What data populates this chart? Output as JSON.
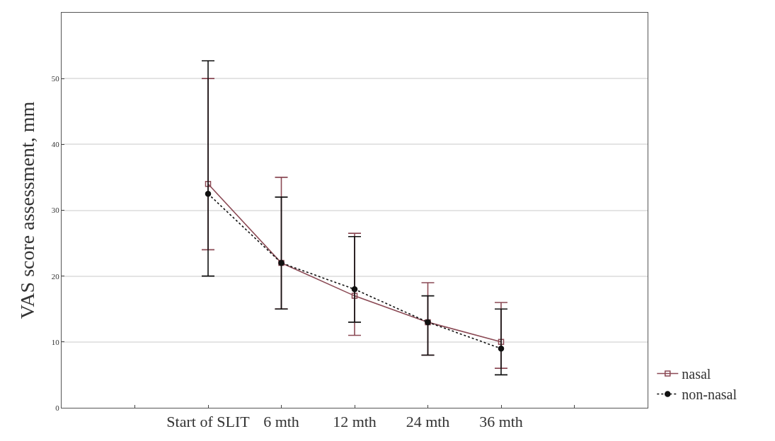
{
  "chart_data": {
    "type": "line",
    "ylabel": "VAS score assessment, mm",
    "categories": [
      null,
      "Start of SLIT",
      "6 mth",
      "12 mth",
      "24 mth",
      "36 mth",
      null
    ],
    "series": [
      {
        "name": "nasal",
        "color": "#8b4a55",
        "values": [
          null,
          34,
          22,
          17,
          13,
          10,
          null
        ],
        "errors": [
          null,
          [
            24,
            50
          ],
          [
            15,
            35
          ],
          [
            11,
            26.5
          ],
          [
            8,
            19
          ],
          [
            6,
            16
          ],
          null
        ],
        "marker": "square",
        "line_style": "solid"
      },
      {
        "name": "non-nasal",
        "color": "#111111",
        "values": [
          null,
          32.5,
          22,
          18,
          13,
          9,
          null
        ],
        "errors": [
          null,
          [
            20,
            52.7
          ],
          [
            15,
            32
          ],
          [
            13,
            26
          ],
          [
            8,
            17
          ],
          [
            5,
            15
          ],
          null
        ],
        "marker": "circle",
        "line_style": "dotted"
      }
    ],
    "ylim": [
      0,
      60
    ],
    "yticks": [
      0,
      10,
      20,
      30,
      40,
      50
    ],
    "grid": "y",
    "legend": "bottom right"
  }
}
